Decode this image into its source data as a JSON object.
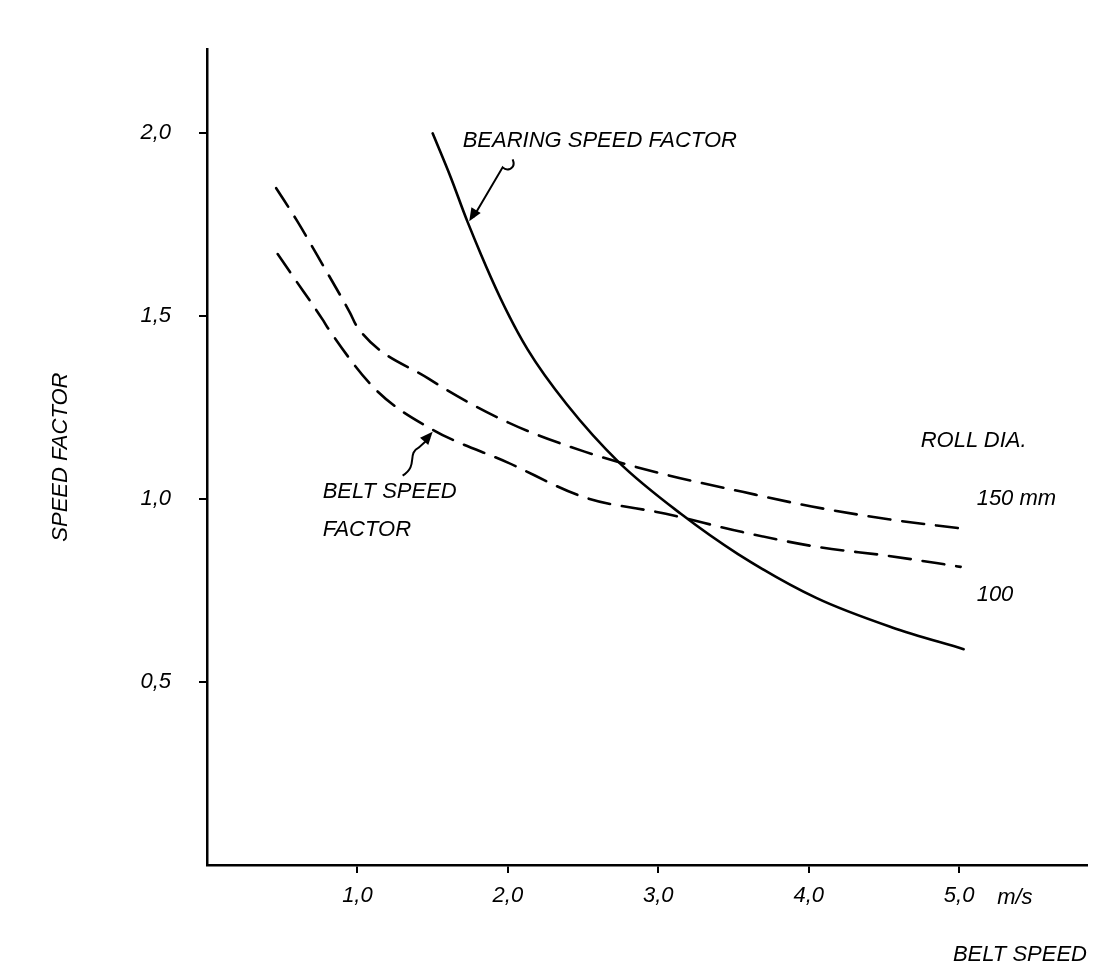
{
  "chart_data": {
    "type": "line",
    "xlabel": "BELT SPEED",
    "ylabel": "SPEED FACTOR",
    "legend_title": "ROLL DIA.",
    "xlim": [
      0,
      5.85
    ],
    "ylim": [
      0,
      2.23
    ],
    "xticks": [
      {
        "value": 1,
        "label": "1,0"
      },
      {
        "value": 2,
        "label": "2,0"
      },
      {
        "value": 3,
        "label": "3,0"
      },
      {
        "value": 4,
        "label": "4,0"
      },
      {
        "value": 5,
        "label": "5,0"
      }
    ],
    "yticks": [
      {
        "value": 0.5,
        "label": "0,5"
      },
      {
        "value": 1,
        "label": "1,0"
      },
      {
        "value": 1.5,
        "label": "1,5"
      },
      {
        "value": 2,
        "label": "2,0"
      }
    ],
    "grid": false,
    "series": [
      {
        "name": "BEARING SPEED FACTOR",
        "color": "#000000",
        "line_style": "solid",
        "x": [
          1.5,
          1.62,
          1.73,
          1.95,
          2.13,
          2.39,
          2.74,
          3.15,
          3.53,
          4.05,
          4.55,
          5.03
        ],
        "values": [
          2.0,
          1.88,
          1.76,
          1.55,
          1.41,
          1.26,
          1.1,
          0.96,
          0.85,
          0.73,
          0.65,
          0.59
        ]
      },
      {
        "name": "150 mm",
        "color": "#000000",
        "line_style": "dashed",
        "x": [
          0.46,
          0.6,
          0.77,
          0.95,
          1.0,
          1.47,
          2.0,
          2.51,
          3.02,
          3.56,
          4.02,
          4.53,
          5.01
        ],
        "values": [
          1.85,
          1.76,
          1.64,
          1.51,
          1.47,
          1.33,
          1.21,
          1.13,
          1.07,
          1.02,
          0.98,
          0.945,
          0.92
        ]
      },
      {
        "name": "100",
        "color": "#000000",
        "line_style": "dashed",
        "x": [
          0.47,
          0.57,
          0.77,
          0.8,
          1.12,
          1.5,
          2.0,
          2.51,
          3.05,
          3.56,
          4.05,
          4.53,
          5.01
        ],
        "values": [
          1.67,
          1.61,
          1.49,
          1.47,
          1.3,
          1.19,
          1.1,
          1.005,
          0.96,
          0.91,
          0.87,
          0.845,
          0.815
        ]
      }
    ],
    "annotations": [
      {
        "text": "BELT SPEED FACTOR",
        "x": 1.5,
        "y": 1.19
      },
      "m/s"
    ]
  }
}
